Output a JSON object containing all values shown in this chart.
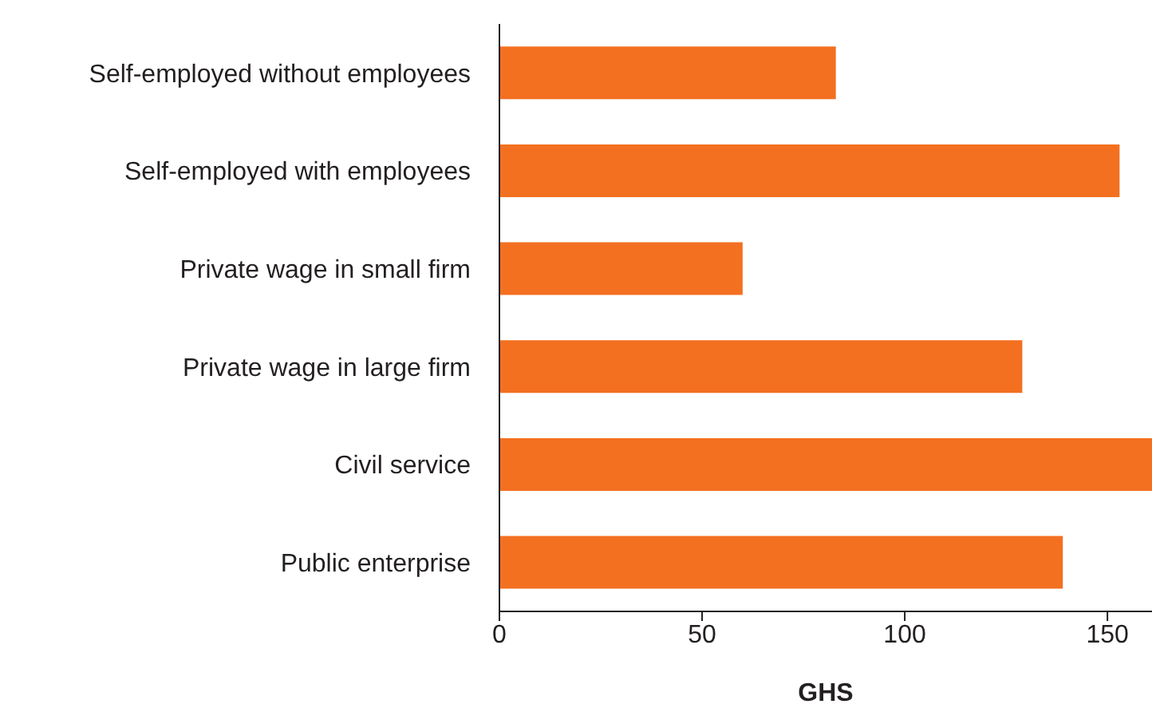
{
  "chart_data": {
    "type": "bar",
    "orientation": "horizontal",
    "xlabel": "GHS",
    "categories": [
      "Self-employed without employees",
      "Self-employed with employees",
      "Private wage in small firm",
      "Private wage in large firm",
      "Civil service",
      "Public enterprise"
    ],
    "values": [
      83,
      153,
      60,
      129,
      161,
      139
    ],
    "color": "#f37021",
    "xlim": [
      0,
      161
    ],
    "xticks": [
      0,
      50,
      100,
      150
    ],
    "legend": false
  }
}
